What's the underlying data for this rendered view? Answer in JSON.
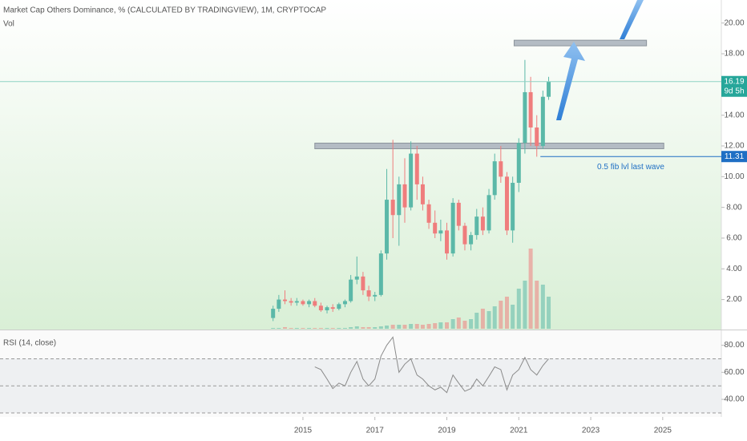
{
  "header": {
    "title": "Market Cap Others Dominance, % (CALCULATED BY TRADINGVIEW), 1M, CRYPTOCAP"
  },
  "chart_data": [
    {
      "type": "candlestick",
      "x": [
        2014.17,
        2014.33,
        2014.5,
        2014.67,
        2014.83,
        2015.0,
        2015.17,
        2015.33,
        2015.5,
        2015.67,
        2015.83,
        2016.0,
        2016.17,
        2016.33,
        2016.5,
        2016.67,
        2016.83,
        2017.0,
        2017.17,
        2017.33,
        2017.5,
        2017.67,
        2017.83,
        2018.0,
        2018.17,
        2018.33,
        2018.5,
        2018.67,
        2018.83,
        2019.0,
        2019.17,
        2019.33,
        2019.5,
        2019.67,
        2019.83,
        2020.0,
        2020.17,
        2020.33,
        2020.5,
        2020.67,
        2020.83,
        2021.0,
        2021.17,
        2021.33,
        2021.5,
        2021.67,
        2021.83
      ],
      "open": [
        0.8,
        1.4,
        2.0,
        1.9,
        1.8,
        1.9,
        1.7,
        1.9,
        1.6,
        1.3,
        1.5,
        1.4,
        1.7,
        1.9,
        3.3,
        3.5,
        2.6,
        2.2,
        2.3,
        5.0,
        8.5,
        7.5,
        9.5,
        8.0,
        11.5,
        9.5,
        8.2,
        7.0,
        6.3,
        6.5,
        5.0,
        8.3,
        6.8,
        5.6,
        6.2,
        7.4,
        6.5,
        8.8,
        11.0,
        10.0,
        6.5,
        9.6,
        12.2,
        15.5,
        13.2,
        12.0,
        15.2
      ],
      "high": [
        1.6,
        2.3,
        2.6,
        2.1,
        2.1,
        2.0,
        2.0,
        2.1,
        1.8,
        1.6,
        1.7,
        1.8,
        2.0,
        3.6,
        4.8,
        3.8,
        2.9,
        2.5,
        5.2,
        10.5,
        12.4,
        10.0,
        11.2,
        12.3,
        12.0,
        10.0,
        8.5,
        7.8,
        7.2,
        7.0,
        8.6,
        8.5,
        7.0,
        6.4,
        7.9,
        8.0,
        9.2,
        11.5,
        12.0,
        10.3,
        10.0,
        12.5,
        17.6,
        16.5,
        14.0,
        15.6,
        16.5
      ],
      "low": [
        0.6,
        1.2,
        1.7,
        1.6,
        1.6,
        1.6,
        1.5,
        1.5,
        1.2,
        1.1,
        1.2,
        1.3,
        1.5,
        1.8,
        3.0,
        2.3,
        1.9,
        1.9,
        2.2,
        4.6,
        6.0,
        5.5,
        7.0,
        7.8,
        8.5,
        7.8,
        6.6,
        6.0,
        5.8,
        4.6,
        4.8,
        6.5,
        5.2,
        5.2,
        5.9,
        6.2,
        6.3,
        8.5,
        9.6,
        6.2,
        5.7,
        9.0,
        11.5,
        12.0,
        11.3,
        11.8,
        15.0
      ],
      "close": [
        1.4,
        2.0,
        1.9,
        1.8,
        1.9,
        1.7,
        1.9,
        1.6,
        1.3,
        1.5,
        1.4,
        1.7,
        1.9,
        3.3,
        3.5,
        2.6,
        2.2,
        2.3,
        5.0,
        8.5,
        7.5,
        9.5,
        8.0,
        11.5,
        9.5,
        8.2,
        7.0,
        6.3,
        6.5,
        5.0,
        8.3,
        6.8,
        5.6,
        6.2,
        7.4,
        6.5,
        8.8,
        11.0,
        10.0,
        6.5,
        9.6,
        12.2,
        15.5,
        13.2,
        12.0,
        15.2,
        16.19
      ],
      "up_color": "#5bb8a8",
      "down_color": "#ef7d7d",
      "xlim": [
        2006.58,
        2026.63
      ],
      "xticks": [
        2015,
        2017,
        2019,
        2021,
        2023,
        2025
      ],
      "ylim": [
        0.1,
        21.5
      ],
      "yticks": [
        {
          "value": 2,
          "label": "2.00"
        },
        {
          "value": 4,
          "label": "4.00"
        },
        {
          "value": 6,
          "label": "6.00"
        },
        {
          "value": 8,
          "label": "8.00"
        },
        {
          "value": 10,
          "label": "10.00"
        },
        {
          "value": 12,
          "label": "12.00"
        },
        {
          "value": 14,
          "label": "14.00"
        },
        {
          "value": 16,
          "label": "16.00"
        },
        {
          "value": 18,
          "label": "18.00"
        },
        {
          "value": 20,
          "label": "20.00"
        }
      ],
      "countdown": "9d 5h",
      "levels": [
        {
          "value": 12.0,
          "x": [
            2015.33,
            2025.03
          ]
        },
        {
          "value": 18.7,
          "x": [
            2020.87,
            2024.55
          ]
        }
      ],
      "fib": {
        "value": 11.31,
        "text": "0.5 fib lvl last wave",
        "x_start": 2021.6
      },
      "volume": {
        "name": "Vol",
        "vlim": [
          0,
          120
        ],
        "values": [
          1,
          1,
          2,
          1,
          1,
          1,
          1,
          1,
          1,
          1,
          1,
          1,
          1,
          2,
          3,
          2,
          2,
          2,
          3,
          4,
          5,
          5,
          5,
          6,
          6,
          5,
          6,
          7,
          8,
          8,
          12,
          14,
          10,
          12,
          20,
          25,
          22,
          28,
          35,
          40,
          30,
          50,
          60,
          100,
          60,
          55,
          40
        ]
      }
    },
    {
      "type": "line",
      "title": "RSI (14, close)",
      "color": "#8a8a8a",
      "x": [
        2014.17,
        2014.33,
        2014.5,
        2014.67,
        2014.83,
        2015.0,
        2015.17,
        2015.33,
        2015.5,
        2015.67,
        2015.83,
        2016.0,
        2016.17,
        2016.33,
        2016.5,
        2016.67,
        2016.83,
        2017.0,
        2017.17,
        2017.33,
        2017.5,
        2017.67,
        2017.83,
        2018.0,
        2018.17,
        2018.33,
        2018.5,
        2018.67,
        2018.83,
        2019.0,
        2019.17,
        2019.33,
        2019.5,
        2019.67,
        2019.83,
        2020.0,
        2020.17,
        2020.33,
        2020.5,
        2020.67,
        2020.83,
        2021.0,
        2021.17,
        2021.33,
        2021.5,
        2021.67,
        2021.83
      ],
      "values": [
        null,
        null,
        null,
        null,
        null,
        null,
        null,
        64,
        62,
        55,
        48,
        52,
        50,
        60,
        68,
        55,
        50,
        55,
        72,
        80,
        86,
        60,
        66,
        70,
        58,
        55,
        50,
        47,
        49,
        45,
        58,
        52,
        46,
        48,
        55,
        50,
        57,
        64,
        62,
        47,
        58,
        62,
        71,
        62,
        58,
        65,
        70
      ],
      "ylim": [
        27,
        91
      ],
      "levels": [
        30,
        50,
        70
      ],
      "yticks": [
        {
          "value": 40,
          "label": "40.00"
        },
        {
          "value": 60,
          "label": "60.00"
        },
        {
          "value": 80,
          "label": "80.00"
        }
      ]
    }
  ]
}
